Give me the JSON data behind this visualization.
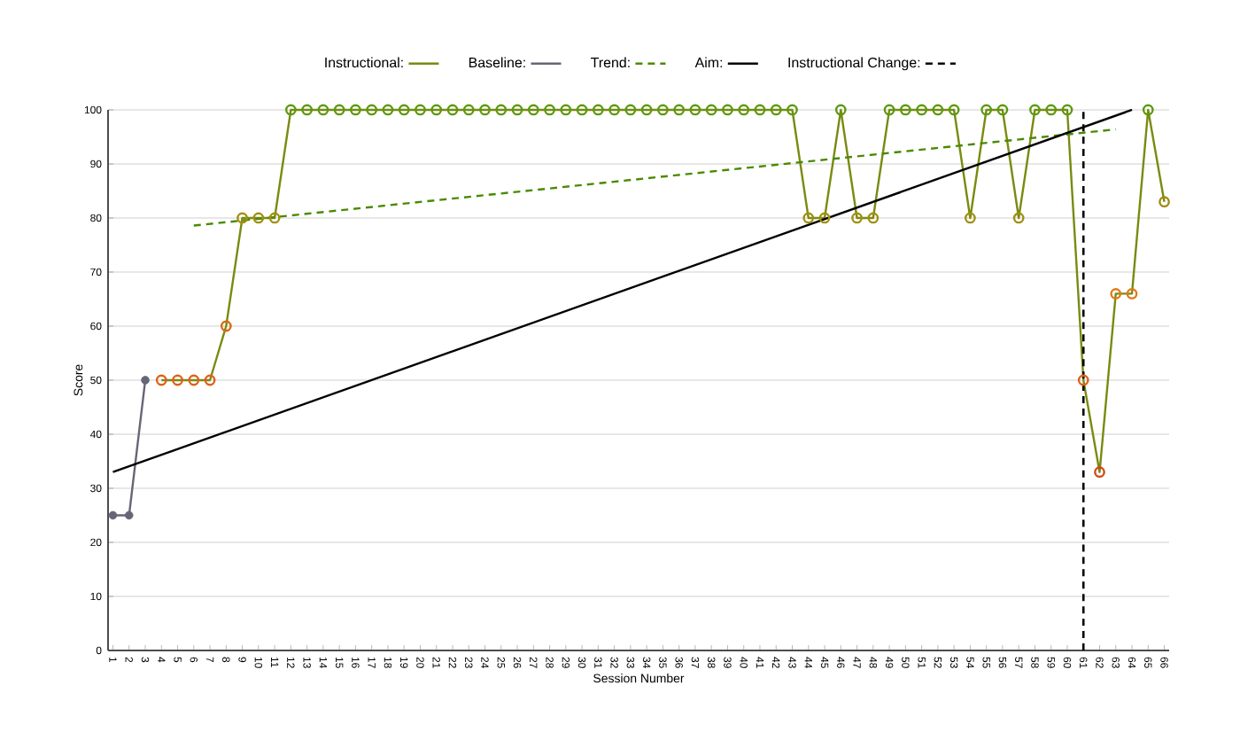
{
  "chart_data": {
    "type": "line",
    "xlabel": "Session Number",
    "ylabel": "Score",
    "xlim": [
      0.7,
      66.3
    ],
    "xticks": [
      1,
      2,
      3,
      4,
      5,
      6,
      7,
      8,
      9,
      10,
      11,
      12,
      13,
      14,
      15,
      16,
      17,
      18,
      19,
      20,
      21,
      22,
      23,
      24,
      25,
      26,
      27,
      28,
      29,
      30,
      31,
      32,
      33,
      34,
      35,
      36,
      37,
      38,
      39,
      40,
      41,
      42,
      43,
      44,
      45,
      46,
      47,
      48,
      49,
      50,
      51,
      52,
      53,
      54,
      55,
      56,
      57,
      58,
      59,
      60,
      61,
      62,
      63,
      64,
      65,
      66
    ],
    "ylim": [
      0,
      100
    ],
    "yticks": [
      0,
      10,
      20,
      30,
      40,
      50,
      60,
      70,
      80,
      90,
      100
    ],
    "grid": "y",
    "legend": "top",
    "series": [
      {
        "name": "Instructional:",
        "color": "#7a8a10",
        "marker": "circle",
        "x": [
          4,
          5,
          6,
          7,
          8,
          9,
          10,
          11,
          12,
          13,
          14,
          15,
          16,
          17,
          18,
          19,
          20,
          21,
          22,
          23,
          24,
          25,
          26,
          27,
          28,
          29,
          30,
          31,
          32,
          33,
          34,
          35,
          36,
          37,
          38,
          39,
          40,
          41,
          42,
          43,
          44,
          45,
          46,
          47,
          48,
          49,
          50,
          51,
          52,
          53,
          54,
          55,
          56,
          57,
          58,
          59,
          60,
          61,
          62,
          63,
          64,
          65,
          66
        ],
        "values": [
          50,
          50,
          50,
          50,
          60,
          80,
          80,
          80,
          100,
          100,
          100,
          100,
          100,
          100,
          100,
          100,
          100,
          100,
          100,
          100,
          100,
          100,
          100,
          100,
          100,
          100,
          100,
          100,
          100,
          100,
          100,
          100,
          100,
          100,
          100,
          100,
          100,
          100,
          100,
          100,
          80,
          80,
          100,
          80,
          80,
          100,
          100,
          100,
          100,
          100,
          80,
          100,
          100,
          80,
          100,
          100,
          100,
          50,
          33,
          66,
          66,
          100,
          83
        ],
        "colors": [
          "#e0601a",
          "#e0601a",
          "#e0601a",
          "#e0601a",
          "#d86a10",
          "#a09010",
          "#a09010",
          "#a09010",
          "#5a9a10",
          "#5a9a10",
          "#5a9a10",
          "#5a9a10",
          "#5a9a10",
          "#5a9a10",
          "#5a9a10",
          "#5a9a10",
          "#5a9a10",
          "#5a9a10",
          "#5a9a10",
          "#5a9a10",
          "#5a9a10",
          "#5a9a10",
          "#5a9a10",
          "#5a9a10",
          "#5a9a10",
          "#5a9a10",
          "#5a9a10",
          "#5a9a10",
          "#5a9a10",
          "#5a9a10",
          "#5a9a10",
          "#5a9a10",
          "#5a9a10",
          "#5a9a10",
          "#5a9a10",
          "#5a9a10",
          "#5a9a10",
          "#5a9a10",
          "#5a9a10",
          "#5a9a10",
          "#a09010",
          "#a09010",
          "#5a9a10",
          "#a09010",
          "#a09010",
          "#5a9a10",
          "#5a9a10",
          "#5a9a10",
          "#5a9a10",
          "#5a9a10",
          "#a09010",
          "#5a9a10",
          "#5a9a10",
          "#a09010",
          "#5a9a10",
          "#5a9a10",
          "#5a9a10",
          "#e0601a",
          "#d04818",
          "#e07a18",
          "#e07a18",
          "#5a9a10",
          "#a08a10"
        ]
      },
      {
        "name": "Baseline:",
        "color": "#666677",
        "marker": "circle",
        "x": [
          1,
          2,
          3
        ],
        "values": [
          25,
          25,
          50
        ]
      },
      {
        "name": "Trend:",
        "color": "#4a8a00",
        "line_style": "dashed",
        "marker": "none",
        "x": [
          6,
          63
        ],
        "values": [
          78.6,
          96.4
        ]
      },
      {
        "name": "Aim:",
        "color": "#000000",
        "marker": "none",
        "x": [
          1,
          64
        ],
        "values": [
          33,
          100
        ]
      }
    ],
    "ref_lines": [
      {
        "axis": "x",
        "value": 61,
        "label": "Instructional Change:",
        "color": "#000000",
        "line_style": "dashed"
      }
    ]
  }
}
